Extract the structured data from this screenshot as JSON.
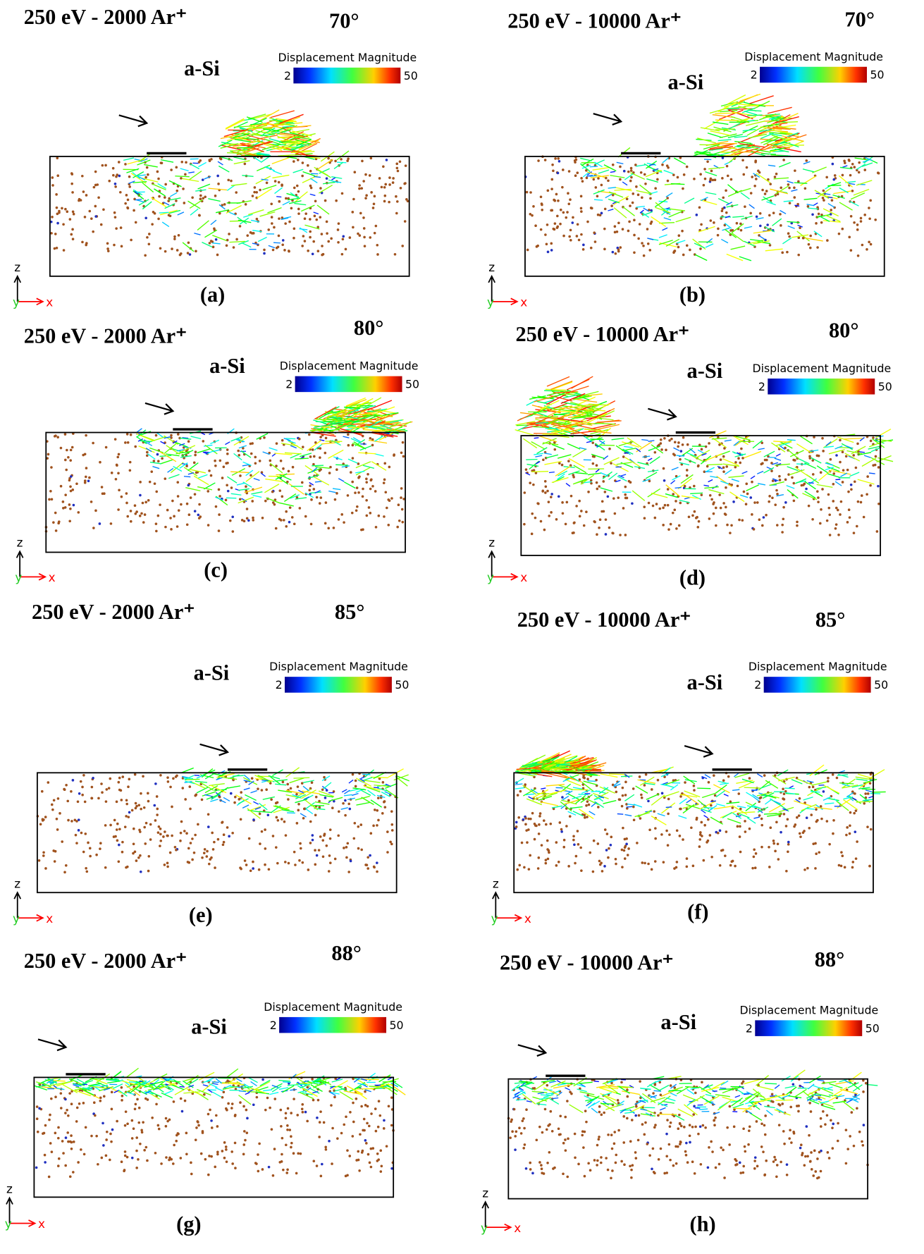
{
  "panels": [
    {
      "label": "(a)",
      "title": "250 eV - 2000 Ar⁺",
      "angle": "70°",
      "material": "a-Si",
      "colorbar": {
        "title": "Displacement Magnitude",
        "min": 2,
        "max": 50
      },
      "axes": {
        "z": "z",
        "y": "y",
        "x": "x"
      }
    },
    {
      "label": "(b)",
      "title": "250 eV - 10000 Ar⁺",
      "angle": "70°",
      "material": "a-Si",
      "colorbar": {
        "title": "Displacement Magnitude",
        "min": 2,
        "max": 50
      },
      "axes": {
        "z": "z",
        "y": "y",
        "x": "x"
      }
    },
    {
      "label": "(c)",
      "title": "250 eV - 2000 Ar⁺",
      "angle": "80°",
      "material": "a-Si",
      "colorbar": {
        "title": "Displacement Magnitude",
        "min": 2,
        "max": 50
      },
      "axes": {
        "z": "z",
        "y": "y",
        "x": "x"
      }
    },
    {
      "label": "(d)",
      "title": "250 eV - 10000 Ar⁺",
      "angle": "80°",
      "material": "a-Si",
      "colorbar": {
        "title": "Displacement Magnitude",
        "min": 2,
        "max": 50
      },
      "axes": {
        "z": "z",
        "y": "y",
        "x": "x"
      }
    },
    {
      "label": "(e)",
      "title": "250 eV - 2000 Ar⁺",
      "angle": "85°",
      "material": "a-Si",
      "colorbar": {
        "title": "Displacement Magnitude",
        "min": 2,
        "max": 50
      },
      "axes": {
        "z": "z",
        "y": "y",
        "x": "x"
      }
    },
    {
      "label": "(f)",
      "title": "250 eV - 10000 Ar⁺",
      "angle": "85°",
      "material": "a-Si",
      "colorbar": {
        "title": "Displacement Magnitude",
        "min": 2,
        "max": 50
      },
      "axes": {
        "z": "z",
        "y": "y",
        "x": "x"
      }
    },
    {
      "label": "(g)",
      "title": "250 eV - 2000 Ar⁺",
      "angle": "88°",
      "material": "a-Si",
      "colorbar": {
        "title": "Displacement Magnitude",
        "min": 2,
        "max": 50
      },
      "axes": {
        "z": "z",
        "y": "y",
        "x": "x"
      }
    },
    {
      "label": "(h)",
      "title": "250 eV - 10000 Ar⁺",
      "angle": "88°",
      "material": "a-Si",
      "colorbar": {
        "title": "Displacement Magnitude",
        "min": 2,
        "max": 50
      },
      "axes": {
        "z": "z",
        "y": "y",
        "x": "x"
      }
    }
  ]
}
